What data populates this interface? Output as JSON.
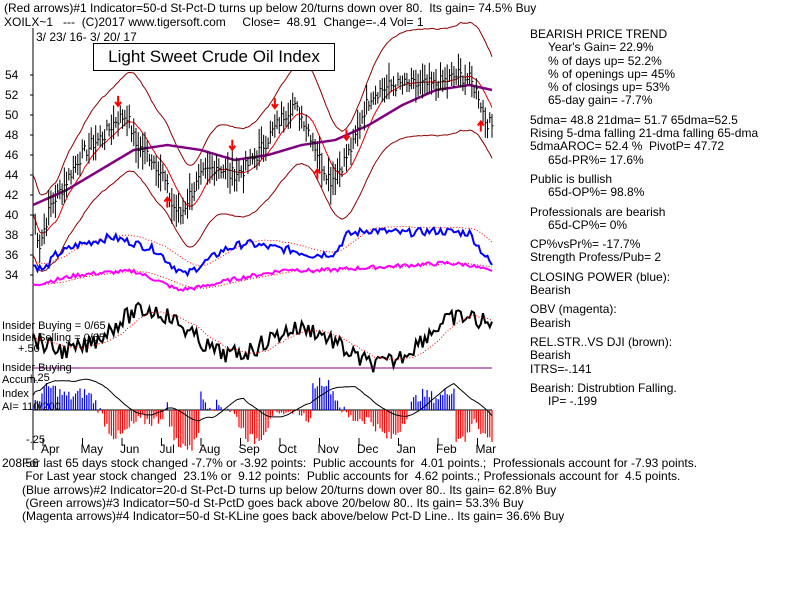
{
  "header": {
    "line1": "(Red arrows)#1 Indicator=50-d St-Pct-D turns up below 20/turns down over 80.  Its gain= 74.5% Buy",
    "line2": "XOILX~1   ---  (C)2017 www.tigersoft.com     Close=  48.91  Change=-.4 Vol= 1",
    "date_range": "3/ 23/ 16- 3/ 20/ 17",
    "chart_title": "Light Sweet Crude Oil Index"
  },
  "panel": {
    "lines": [
      {
        "text": "BEARISH PRICE TREND",
        "indent": false
      },
      {
        "text": "Year's Gain= 22.9%",
        "indent": true
      },
      {
        "text": "% of days up= 52.2%",
        "indent": true
      },
      {
        "text": "% of openings up= 45%",
        "indent": true
      },
      {
        "text": "% of closings up= 53%",
        "indent": true
      },
      {
        "text": "65-day gain= -7.7%",
        "indent": true
      },
      {
        "text": "5dma= 48.8 21dma= 51.7 65dma=52.5",
        "indent": false
      },
      {
        "text": "Rising 5-dma falling 21-dma falling 65-dma",
        "indent": false
      },
      {
        "text": "5dmaAROC= 52.4 %  PivotP= 47.72",
        "indent": false
      },
      {
        "text": "65d-PR%= 17.6%",
        "indent": true
      },
      {
        "text": "Public is bullish",
        "indent": false
      },
      {
        "text": "65d-OP%= 98.8%",
        "indent": true
      },
      {
        "text": "Professionals are bearish",
        "indent": false
      },
      {
        "text": "65d-CP%= 0%",
        "indent": true
      },
      {
        "text": "CP%vsPr%= -17.7%",
        "indent": false
      },
      {
        "text": "Strength Profess/Pub= 2",
        "indent": false
      },
      {
        "text": "CLOSING POWER (blue):",
        "indent": false
      },
      {
        "text": "Bearish",
        "indent": false
      },
      {
        "text": "OBV (magenta):",
        "indent": false
      },
      {
        "text": "Bearish",
        "indent": false
      },
      {
        "text": "REL.STR..VS DJI (brown):",
        "indent": false
      },
      {
        "text": "Bearish",
        "indent": false
      },
      {
        "text": "ITRS=-.141",
        "indent": false
      },
      {
        "text": "Bearish: Distrubtion Falling.",
        "indent": false
      },
      {
        "text": "IP= -.199",
        "indent": true
      }
    ]
  },
  "left_labels": {
    "insider_buying": "Insider Buying = 0/65",
    "insider_selling": "Insider Selling = 0/65",
    "plus50": "+.50",
    "insider_buying2": "Insider Buying",
    "accum": "Accum.",
    "plus25": "+.25",
    "index": "Index",
    "ai": "AI= 110/200",
    "minus25": "-.25",
    "corner": "208.56"
  },
  "bottom": {
    "lines": [
      "For last 65 days stock changed -7.7% or -3.92 points:  Public accounts for  4.01 points.;  Professionals account for -7.93 points.",
      " For Last year stock changed  23.1% or  9.12 points:  Public accounts for  4.62 points.; Professionals account for  4.5 points.",
      "(Blue arrows)#2 Indicator=20-d St-Pct-D turns up below 20/turns down over 80.. Its gain= 62.8% Buy",
      " (Green arrows)#3 Indicator=50-d St-PctD goes back above 20/below 80.. Its gain= 53.3% Buy",
      "(Magenta arrows)#4 Indicator=50-d St-KLine goes back above/below Pct-D Line.. Its gain= 36.6% Buy"
    ]
  },
  "chart_data": {
    "type": "line",
    "x_ticks": [
      "Apr",
      "May",
      "Jun",
      "Jul",
      "Aug",
      "Sep",
      "Oct",
      "Nov",
      "Dec",
      "Jan",
      "Feb",
      "Mar"
    ],
    "y_ticks": [
      34,
      36,
      38,
      40,
      42,
      44,
      46,
      48,
      50,
      52,
      54
    ],
    "ylim": [
      33,
      56
    ],
    "price_anchors": [
      [
        0,
        40
      ],
      [
        3,
        37
      ],
      [
        8,
        41
      ],
      [
        14,
        43
      ],
      [
        20,
        45.5
      ],
      [
        26,
        47
      ],
      [
        32,
        48
      ],
      [
        37,
        49.5
      ],
      [
        42,
        50
      ],
      [
        46,
        47
      ],
      [
        52,
        46
      ],
      [
        58,
        44
      ],
      [
        62,
        41
      ],
      [
        66,
        40
      ],
      [
        70,
        42
      ],
      [
        76,
        44
      ],
      [
        82,
        45
      ],
      [
        88,
        44
      ],
      [
        94,
        44.5
      ],
      [
        100,
        46
      ],
      [
        106,
        48
      ],
      [
        112,
        50
      ],
      [
        116,
        51
      ],
      [
        121,
        49.5
      ],
      [
        125,
        47.5
      ],
      [
        129,
        45
      ],
      [
        133,
        43.5
      ],
      [
        138,
        45
      ],
      [
        143,
        47
      ],
      [
        147,
        50
      ],
      [
        151,
        52
      ],
      [
        155,
        52.5
      ],
      [
        161,
        53
      ],
      [
        167,
        53
      ],
      [
        173,
        53
      ],
      [
        179,
        53
      ],
      [
        185,
        53.5
      ],
      [
        190,
        54
      ],
      [
        195,
        53.5
      ],
      [
        199,
        52
      ],
      [
        202,
        49.5
      ],
      [
        205,
        48.9
      ]
    ],
    "ma65_anchors": [
      [
        0,
        41
      ],
      [
        15,
        42.5
      ],
      [
        30,
        44.5
      ],
      [
        45,
        46.5
      ],
      [
        60,
        47
      ],
      [
        75,
        46.5
      ],
      [
        90,
        45.5
      ],
      [
        105,
        46
      ],
      [
        120,
        47
      ],
      [
        135,
        47.5
      ],
      [
        150,
        49
      ],
      [
        165,
        51
      ],
      [
        180,
        52.5
      ],
      [
        195,
        53
      ],
      [
        205,
        52.5
      ]
    ],
    "closing_power_anchors": [
      [
        0,
        35
      ],
      [
        5,
        34.5
      ],
      [
        10,
        36
      ],
      [
        20,
        37
      ],
      [
        35,
        37.8
      ],
      [
        45,
        37.2
      ],
      [
        55,
        36.5
      ],
      [
        62,
        35
      ],
      [
        68,
        34
      ],
      [
        75,
        35
      ],
      [
        85,
        36.5
      ],
      [
        95,
        37.2
      ],
      [
        105,
        36.8
      ],
      [
        115,
        36.5
      ],
      [
        125,
        36
      ],
      [
        135,
        36.2
      ],
      [
        140,
        38
      ],
      [
        150,
        38.5
      ],
      [
        165,
        38.2
      ],
      [
        180,
        38.4
      ],
      [
        195,
        38.2
      ],
      [
        200,
        36.5
      ],
      [
        205,
        35
      ]
    ],
    "obv_anchors": [
      [
        0,
        33
      ],
      [
        10,
        33.5
      ],
      [
        20,
        34
      ],
      [
        30,
        34.2
      ],
      [
        45,
        34.4
      ],
      [
        55,
        33.5
      ],
      [
        65,
        32.5
      ],
      [
        75,
        32.8
      ],
      [
        90,
        33.6
      ],
      [
        105,
        34.2
      ],
      [
        115,
        34.6
      ],
      [
        125,
        34.4
      ],
      [
        140,
        34.6
      ],
      [
        155,
        34.8
      ],
      [
        170,
        35
      ],
      [
        185,
        35.2
      ],
      [
        195,
        35
      ],
      [
        205,
        34.3
      ]
    ]
  }
}
